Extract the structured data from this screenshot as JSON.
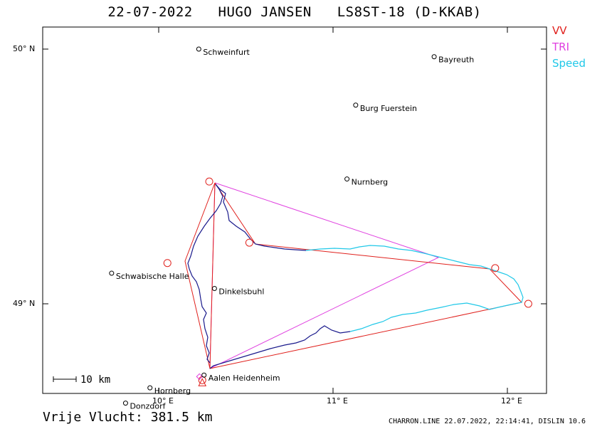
{
  "header": {
    "date": "22-07-2022",
    "pilot": "HUGO JANSEN",
    "glider": "LS8ST-18 (D-KKAB)"
  },
  "legend": [
    {
      "label": "VV",
      "color": "#e0201c"
    },
    {
      "label": "TRI",
      "color": "#e040e0"
    },
    {
      "label": "Speed",
      "color": "#20c8e8"
    }
  ],
  "axes": {
    "lat_labels": [
      "50° N",
      "49° N"
    ],
    "lon_labels": [
      "10° E",
      "11° E",
      "12° E"
    ]
  },
  "scale_bar": {
    "label": "10 km"
  },
  "places": [
    {
      "name": "Schweinfurt",
      "lon": 10.23,
      "lat": 50.0
    },
    {
      "name": "Bayreuth",
      "lon": 11.58,
      "lat": 49.97
    },
    {
      "name": "Burg Fuerstein",
      "lon": 11.13,
      "lat": 49.78
    },
    {
      "name": "Nurnberg",
      "lon": 11.08,
      "lat": 49.49
    },
    {
      "name": "Schwabische Halle",
      "lon": 9.73,
      "lat": 49.12
    },
    {
      "name": "Dinkelsbuhl",
      "lon": 10.32,
      "lat": 49.06
    },
    {
      "name": "Aalen Heidenheim",
      "lon": 10.26,
      "lat": 48.72
    },
    {
      "name": "Hornberg",
      "lon": 9.95,
      "lat": 48.67
    },
    {
      "name": "Donzdorf",
      "lon": 9.81,
      "lat": 48.61
    }
  ],
  "turnpoints": [
    {
      "lon": 10.25,
      "lat": 48.7
    },
    {
      "lon": 10.29,
      "lat": 49.48
    },
    {
      "lon": 10.05,
      "lat": 49.16
    },
    {
      "lon": 10.52,
      "lat": 49.24
    },
    {
      "lon": 11.93,
      "lat": 49.14
    },
    {
      "lon": 12.12,
      "lat": 49.0
    }
  ],
  "footer": {
    "label": "Vrije Vlucht:",
    "distance": "381.5 km",
    "info": "CHARRON.LINE 22.07.2022, 22:14:41, DISLIN 10.6"
  },
  "colors": {
    "frame": "#000000",
    "track": "#1a1a8c",
    "track_fast": "#20c8e8",
    "vv": "#e0201c",
    "tri": "#e040e0"
  }
}
